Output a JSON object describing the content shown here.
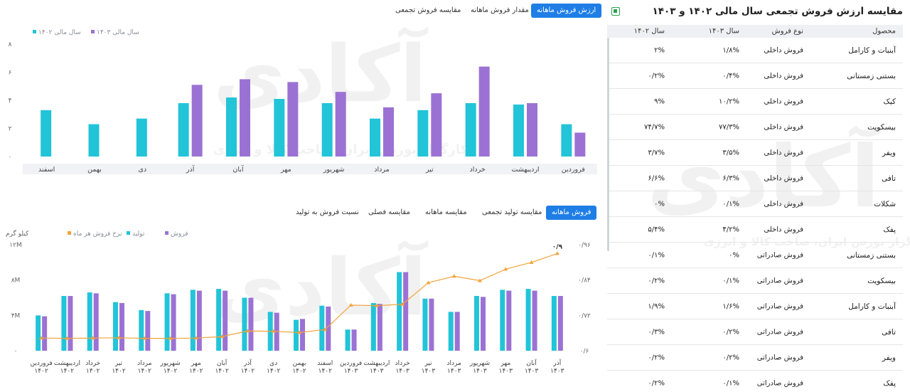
{
  "right_panel": {
    "title": "مقایسه ارزش فروش تجمعی سال مالی ۱۴۰۲ و ۱۴۰۳",
    "export_icon": "excel-icon",
    "headers": [
      "محصول",
      "نوع فروش",
      "سال ۱۴۰۳",
      "سال ۱۴۰۲"
    ],
    "rows": [
      {
        "product": "آبنبات و کارامل",
        "type": "فروش داخلی",
        "y1403": "۱/۸%",
        "y1402": "۲%"
      },
      {
        "product": "بستنی زمستانی",
        "type": "فروش داخلی",
        "y1403": "۰/۴%",
        "y1402": "۰/۲%"
      },
      {
        "product": "کیک",
        "type": "فروش داخلی",
        "y1403": "۱۰/۲%",
        "y1402": "۹%"
      },
      {
        "product": "بیسکویت",
        "type": "فروش داخلی",
        "y1403": "۷۷/۳%",
        "y1402": "۷۴/۷%"
      },
      {
        "product": "ویفر",
        "type": "فروش داخلی",
        "y1403": "۳/۵%",
        "y1402": "۳/۷%"
      },
      {
        "product": "تافی",
        "type": "فروش داخلی",
        "y1403": "۶/۳%",
        "y1402": "۶/۶%"
      },
      {
        "product": "شکلات",
        "type": "فروش داخلی",
        "y1403": "۰/۱%",
        "y1402": "۰%"
      },
      {
        "product": "پفک",
        "type": "فروش داخلی",
        "y1403": "۴/۲%",
        "y1402": "۵/۴%"
      },
      {
        "product": "بستنی زمستانی",
        "type": "فروش صادراتی",
        "y1403": "۰%",
        "y1402": "۰/۱%"
      },
      {
        "product": "بیسکویت",
        "type": "فروش صادراتی",
        "y1403": "۰/۱%",
        "y1402": "۰/۲%"
      },
      {
        "product": "آبنبات و کارامل",
        "type": "فروش صادراتی",
        "y1403": "۱/۶%",
        "y1402": "۱/۹%"
      },
      {
        "product": "تافی",
        "type": "فروش صادراتی",
        "y1403": "۰/۲%",
        "y1402": "۰/۳%"
      },
      {
        "product": "ویفر",
        "type": "فروش صادراتی",
        "y1403": "۰/۲%",
        "y1402": "۰/۲%"
      },
      {
        "product": "پفک",
        "type": "فروش صادراتی",
        "y1403": "۰/۱%",
        "y1402": "۰/۲%"
      }
    ]
  },
  "top_tabs": {
    "t1": "ارزش فروش ماهانه",
    "t2": "مقدار فروش ماهانه",
    "t3": "مقایسه فروش تجمعی"
  },
  "bottom_tabs": {
    "t1": "فروش ماهانه",
    "t2": "مقایسه تولید تجمعی",
    "t3": "مقایسه ماهانه",
    "t4": "مقایسه فصلی",
    "t5": "نسبت فروش به تولید"
  },
  "watermark": {
    "logo": "آکادی",
    "slogan": "کارگزار بورس ایران، صاحب کالا و انرژی"
  },
  "chart_data": [
    {
      "type": "bar",
      "categories": [
        "فروردین",
        "اردیبهشت",
        "خرداد",
        "تیر",
        "مرداد",
        "شهریور",
        "مهر",
        "آبان",
        "آذر",
        "دی",
        "بهمن",
        "اسفند"
      ],
      "series": [
        {
          "name": "سال مالی ۱۴۰۲",
          "color": "#22c4d8",
          "values": [
            2.3,
            3.7,
            3.8,
            3.3,
            2.7,
            3.8,
            4.1,
            4.2,
            3.8,
            2.7,
            2.3,
            3.3
          ]
        },
        {
          "name": "سال مالی ۱۴۰۳",
          "color": "#9b72d4",
          "values": [
            1.7,
            3.8,
            6.4,
            4.5,
            3.5,
            4.6,
            5.3,
            5.5,
            5.1,
            null,
            null,
            null
          ]
        }
      ],
      "yticks": [
        "۰",
        "۲",
        "۴",
        "۶",
        "۸"
      ],
      "ylim": [
        0,
        8
      ]
    },
    {
      "type": "bar",
      "categories": [
        "فروردین",
        "اردیبهشت",
        "خرداد",
        "تیر",
        "مرداد",
        "شهریور",
        "مهر",
        "آبان",
        "آذر",
        "دی",
        "بهمن",
        "اسفند",
        "فروردین",
        "اردیبهشت",
        "خرداد",
        "تیر",
        "مرداد",
        "شهریور",
        "مهر",
        "آبان",
        "آذر"
      ],
      "years": [
        "۱۴۰۲",
        "۱۴۰۲",
        "۱۴۰۲",
        "۱۴۰۲",
        "۱۴۰۲",
        "۱۴۰۲",
        "۱۴۰۲",
        "۱۴۰۲",
        "۱۴۰۲",
        "۱۴۰۲",
        "۱۴۰۲",
        "۱۴۰۲",
        "۱۴۰۳",
        "۱۴۰۳",
        "۱۴۰۳",
        "۱۴۰۳",
        "۱۴۰۳",
        "۱۴۰۳",
        "۱۴۰۳",
        "۱۴۰۳",
        "۱۴۰۳"
      ],
      "series": [
        {
          "name": "فروش",
          "color": "#9b72d4",
          "axis": "left",
          "values": [
            3.9,
            6.2,
            6.5,
            5.4,
            4.5,
            6.4,
            6.8,
            6.8,
            6.0,
            4.3,
            3.6,
            5.0,
            2.4,
            5.3,
            8.9,
            5.9,
            4.4,
            6.1,
            6.8,
            6.8,
            6.2
          ]
        },
        {
          "name": "تولید",
          "color": "#22c4d8",
          "axis": "left",
          "values": [
            4.0,
            6.2,
            6.6,
            5.5,
            4.6,
            6.5,
            6.9,
            7.0,
            6.0,
            4.4,
            3.5,
            5.1,
            2.4,
            5.4,
            8.9,
            5.9,
            4.4,
            6.2,
            6.9,
            7.0,
            6.2
          ]
        },
        {
          "name": "نرخ فروش هر ماه",
          "color": "#f2a33a",
          "axis": "right",
          "values": [
            0.643,
            0.642,
            0.643,
            0.644,
            0.642,
            0.642,
            0.643,
            0.648,
            0.667,
            0.666,
            0.662,
            0.672,
            0.755,
            0.753,
            0.758,
            0.831,
            0.853,
            0.838,
            0.877,
            0.9,
            0.93
          ]
        }
      ],
      "last_point_label": "۰/۹",
      "ylabel_left": "کیلو گرم",
      "yticks_left": [
        "۰",
        "۴M",
        "۸M",
        "۱۲M"
      ],
      "ylim_left": [
        0,
        12
      ],
      "yticks_right": [
        "۰/۶",
        "۰/۷۲",
        "۰/۸۴",
        "۰/۹۶"
      ],
      "ylim_right": [
        0.6,
        0.96
      ]
    }
  ]
}
